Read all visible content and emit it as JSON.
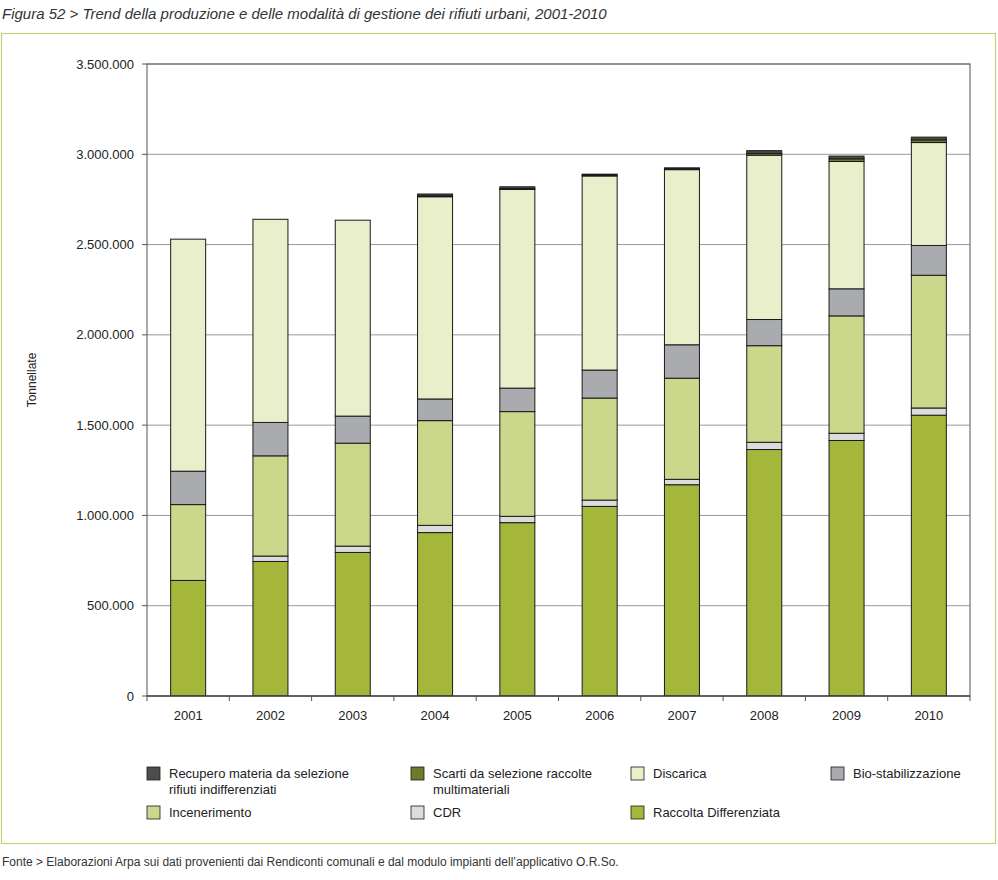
{
  "chart_data": {
    "type": "bar",
    "stacked": true,
    "grid": true,
    "legend": "bottom",
    "title": "Figura 52 > Trend della produzione e delle modalità di gestione dei rifiuti urbani, 2001-2010",
    "y_label": "Tonnellate",
    "source": "Fonte > Elaborazioni Arpa sui dati provenienti dai Rendiconti comunali e dal modulo impianti dell’applicativo O.R.So.",
    "categories": [
      "2001",
      "2002",
      "2003",
      "2004",
      "2005",
      "2006",
      "2007",
      "2008",
      "2009",
      "2010"
    ],
    "ylim": [
      0,
      3500000
    ],
    "yticks": [
      0,
      {
        "value": 500000,
        "label": "500.000"
      },
      {
        "value": 1000000,
        "label": "1.000.000"
      },
      {
        "value": 1500000,
        "label": "1.500.000"
      },
      {
        "value": 2000000,
        "label": "2.000.000"
      },
      {
        "value": 2500000,
        "label": "2.500.000"
      },
      {
        "value": 3000000,
        "label": "3.000.000"
      },
      {
        "value": 3500000,
        "label": "3.500.000"
      }
    ],
    "series": [
      {
        "name": "Raccolta Differenziata",
        "color": "#a4b73a",
        "values": [
          640000,
          745000,
          795000,
          905000,
          960000,
          1050000,
          1170000,
          1365000,
          1415000,
          1555000
        ]
      },
      {
        "name": "CDR",
        "color": "#dcdcdc",
        "values": [
          0,
          30000,
          35000,
          40000,
          35000,
          35000,
          30000,
          40000,
          40000,
          40000
        ]
      },
      {
        "name": "Incenerimento",
        "color": "#cbd88c",
        "values": [
          420000,
          555000,
          570000,
          580000,
          580000,
          565000,
          560000,
          535000,
          650000,
          735000
        ]
      },
      {
        "name": "Bio-stabilizzazione",
        "color": "#a9abae",
        "values": [
          185000,
          185000,
          150000,
          120000,
          130000,
          155000,
          185000,
          145000,
          150000,
          165000
        ]
      },
      {
        "name": "Discarica",
        "color": "#e9eecb",
        "values": [
          1285000,
          1125000,
          1085000,
          1120000,
          1100000,
          1075000,
          970000,
          910000,
          705000,
          570000
        ]
      },
      {
        "name": "Scarti da selezione raccolte multimateriali",
        "color": "#6b7d2a",
        "values": [
          0,
          0,
          0,
          5000,
          5000,
          5000,
          5000,
          10000,
          15000,
          15000
        ]
      },
      {
        "name": "Recupero materia da selezione rifiuti indifferenziati",
        "color": "#4d4d4f",
        "values": [
          0,
          0,
          0,
          10000,
          10000,
          5000,
          5000,
          15000,
          15000,
          15000
        ]
      }
    ]
  }
}
